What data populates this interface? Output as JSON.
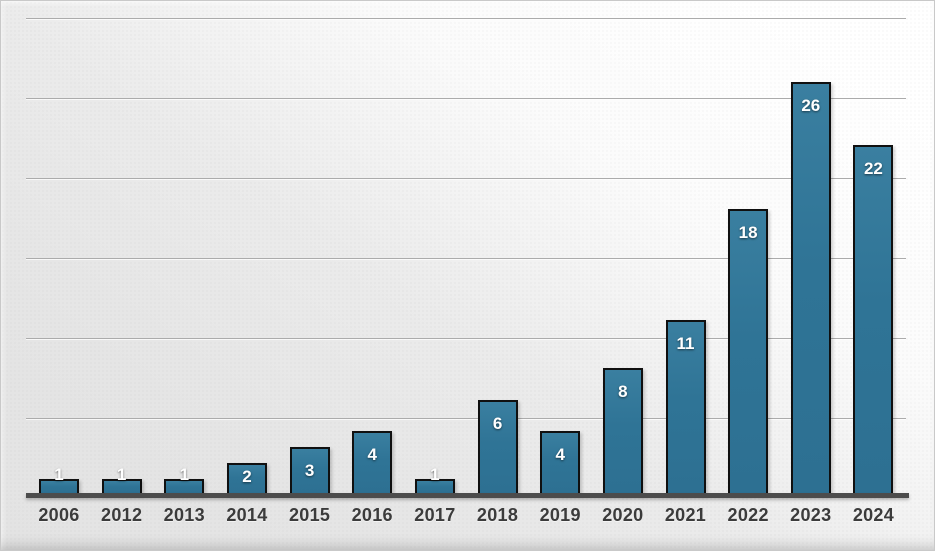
{
  "chart_data": {
    "type": "bar",
    "title": "",
    "xlabel": "",
    "ylabel": "",
    "categories": [
      "2006",
      "2012",
      "2013",
      "2014",
      "2015",
      "2016",
      "2017",
      "2018",
      "2019",
      "2020",
      "2021",
      "2022",
      "2023",
      "2024"
    ],
    "values": [
      1,
      1,
      1,
      2,
      3,
      4,
      1,
      6,
      4,
      8,
      11,
      18,
      26,
      22
    ],
    "ylim": [
      0,
      30
    ],
    "y_axis_labels_visible": false,
    "gridline_values": [
      5,
      10,
      15,
      20,
      25,
      30
    ],
    "legend": "none",
    "value_labels_position": "inside-end",
    "colors": {
      "bar_fill": "#2f7496",
      "bar_border": "#101010",
      "value_label": "#ffffff",
      "tick_label": "#3b3b3b",
      "axis_line": "#4c4c4c",
      "gridline": "#ababab",
      "background_base": "#e4e4e4",
      "background_highlight": "#ffffff"
    }
  }
}
